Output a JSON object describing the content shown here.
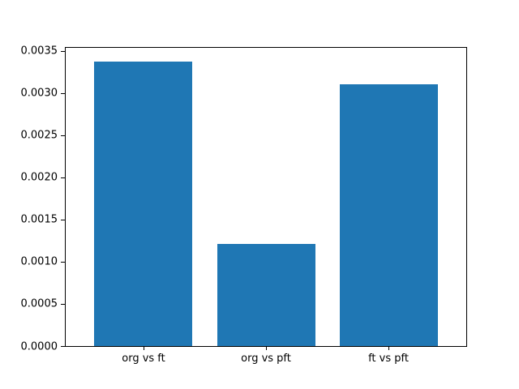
{
  "chart_data": {
    "type": "bar",
    "title": "",
    "xlabel": "",
    "ylabel": "",
    "categories": [
      "org vs ft",
      "org vs pft",
      "ft vs pft"
    ],
    "values": [
      0.003375,
      0.00121,
      0.0031
    ],
    "ylim": [
      0,
      0.0035434
    ],
    "yticks": [
      0.0,
      0.0005,
      0.001,
      0.0015,
      0.002,
      0.0025,
      0.003,
      0.0035
    ],
    "ytick_labels": [
      "0.0000",
      "0.0005",
      "0.0010",
      "0.0015",
      "0.0020",
      "0.0025",
      "0.0030",
      "0.0035"
    ],
    "bar_width_fraction": 0.8,
    "grid": false,
    "legend": false,
    "colors": {
      "bar": "#1f77b4",
      "frame": "#000000",
      "background": "#ffffff",
      "text": "#000000"
    }
  }
}
